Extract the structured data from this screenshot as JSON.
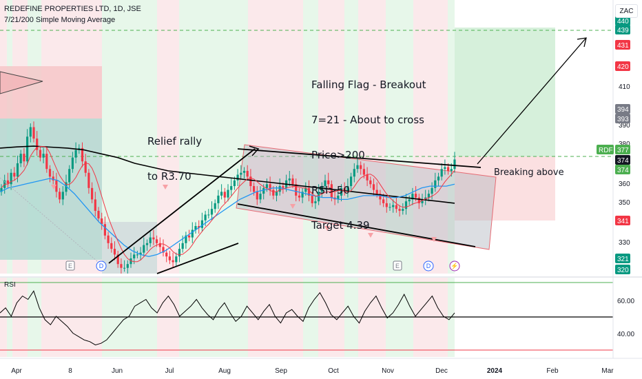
{
  "header": {
    "title": "REDEFINE PROPERTIES LTD, 1D, JSE",
    "indicator": "7/21/200 Simple Moving Average",
    "currency_button": "ZAC"
  },
  "annotations": {
    "flag_lines": [
      "Falling Flag - Breakout",
      "7=21 - About to cross",
      "Price>200",
      "RSI>50",
      "Target 4.39"
    ],
    "relief_lines": [
      "Relief rally",
      "to R3.70"
    ],
    "breaking": "Breaking above"
  },
  "rsi": {
    "label": "RSI",
    "ticks": [
      "60.00",
      "40.00"
    ]
  },
  "price_axis": {
    "ticks": [
      "410",
      "390",
      "380",
      "370",
      "360",
      "350",
      "330"
    ],
    "tags": [
      {
        "text": "440",
        "color": "#089981"
      },
      {
        "text": "439",
        "color": "#089981"
      },
      {
        "text": "431",
        "color": "#f23645"
      },
      {
        "text": "420",
        "color": "#f23645"
      },
      {
        "text": "394",
        "color": "#787b86"
      },
      {
        "text": "393",
        "color": "#787b86"
      },
      {
        "text": "RDF",
        "color": "#4caf50"
      },
      {
        "text": "377",
        "color": "#4caf50"
      },
      {
        "text": "374",
        "color": "#131722"
      },
      {
        "text": "374",
        "color": "#4caf50"
      },
      {
        "text": "341",
        "color": "#f23645"
      },
      {
        "text": "321",
        "color": "#089981"
      },
      {
        "text": "320",
        "color": "#089981"
      }
    ]
  },
  "time_axis": {
    "labels": [
      "Apr",
      "8",
      "Jun",
      "Jul",
      "Aug",
      "Sep",
      "Oct",
      "Nov",
      "Dec",
      "2024",
      "Feb",
      "Mar"
    ]
  },
  "event_markers": [
    "E",
    "D",
    "E",
    "D",
    "⚡"
  ],
  "chart_data": {
    "type": "candlestick",
    "title": "REDEFINE PROPERTIES LTD, 1D, JSE",
    "indicators": [
      "SMA 7",
      "SMA 21",
      "SMA 200",
      "RSI"
    ],
    "price_range": [
      317,
      450
    ],
    "x_labels": [
      "Apr",
      "8",
      "Jun",
      "Jul",
      "Aug",
      "Sep",
      "Oct",
      "Nov",
      "Dec",
      "2024",
      "Feb",
      "Mar"
    ],
    "closes": [
      362,
      366,
      364,
      370,
      368,
      375,
      380,
      376,
      389,
      394,
      388,
      382,
      378,
      380,
      372,
      368,
      366,
      360,
      356,
      360,
      365,
      372,
      378,
      382,
      383,
      376,
      370,
      362,
      356,
      350,
      346,
      343,
      337,
      333,
      330,
      327,
      322,
      320,
      320,
      322,
      325,
      327,
      327,
      328,
      332,
      333,
      336,
      335,
      333,
      331,
      328,
      326,
      324,
      323,
      326,
      330,
      333,
      337,
      336,
      340,
      342,
      341,
      345,
      348,
      348,
      351,
      354,
      358,
      360,
      357,
      361,
      363,
      366,
      369,
      370,
      371,
      368,
      363,
      360,
      356,
      359,
      362,
      364,
      361,
      358,
      360,
      363,
      362,
      366,
      367,
      364,
      358,
      357,
      360,
      362,
      358,
      354,
      355,
      360,
      363,
      366,
      364,
      357,
      356,
      358,
      362,
      360,
      363,
      368,
      372,
      374,
      372,
      369,
      366,
      364,
      361,
      359,
      356,
      354,
      352,
      352,
      353,
      351,
      350,
      351,
      355,
      356,
      359,
      357,
      354,
      356,
      357,
      359,
      362,
      366,
      368,
      372,
      373,
      371,
      372,
      377
    ],
    "sma200": [
      383,
      383.6,
      384,
      383.5,
      383,
      382,
      380,
      378,
      375,
      373,
      371,
      370,
      369,
      368,
      367,
      366,
      365,
      364,
      363,
      362,
      361,
      360,
      359,
      358,
      357,
      356,
      355,
      354
    ],
    "sma21": [
      360,
      362,
      363,
      364,
      365,
      366,
      367,
      366,
      363,
      359,
      354,
      349,
      344,
      340,
      336,
      332,
      329,
      327,
      326,
      327,
      329,
      332,
      335,
      338,
      341,
      344,
      347,
      350,
      353,
      356,
      358,
      360,
      361,
      362,
      362,
      361,
      360,
      359,
      358,
      357,
      357,
      356,
      356,
      357,
      358,
      358,
      358,
      357,
      357,
      358,
      360,
      362,
      363,
      363,
      363,
      364
    ],
    "rsi_values": [
      52,
      55,
      50,
      58,
      62,
      60,
      65,
      55,
      48,
      45,
      50,
      47,
      44,
      40,
      38,
      36,
      35,
      33,
      34,
      36,
      40,
      44,
      48,
      50,
      56,
      58,
      60,
      55,
      52,
      58,
      62,
      57,
      50,
      53,
      56,
      60,
      55,
      51,
      48,
      54,
      58,
      52,
      47,
      50,
      56,
      52,
      48,
      53,
      57,
      50,
      46,
      52,
      54,
      50,
      47,
      55,
      60,
      64,
      58,
      51,
      48,
      52,
      56,
      50,
      46,
      53,
      58,
      62,
      55,
      49,
      52,
      57,
      63,
      56,
      50,
      54,
      58,
      62,
      55,
      50,
      48,
      52
    ],
    "target_price": 439,
    "breakout_price": 377,
    "rsi_levels": [
      70,
      50,
      30
    ]
  }
}
